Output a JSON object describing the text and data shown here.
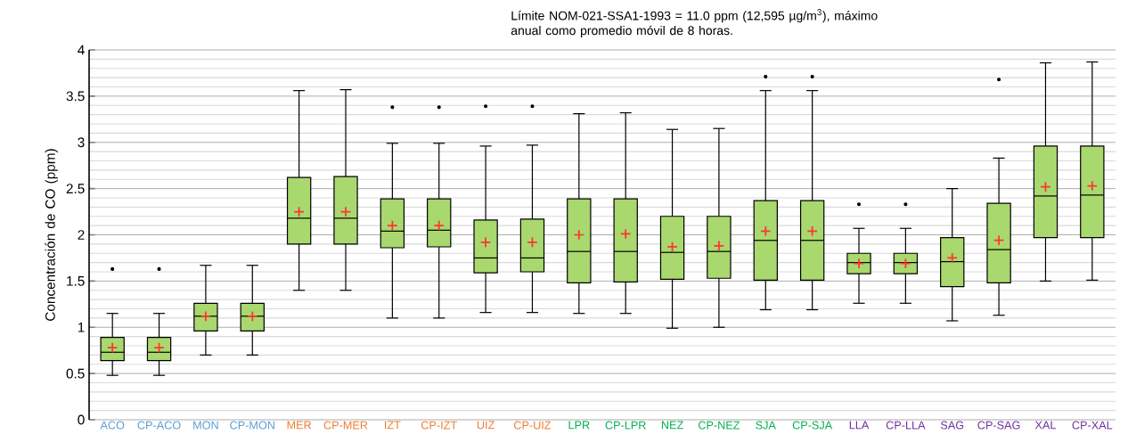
{
  "chart_data": {
    "type": "box",
    "ylabel": "Concentración de CO (ppm)",
    "annotations": [
      "Límite NOM-021-SSA1-1993 = 11.0 ppm (12,595 µg/m$^{3}$),  máximo anual como promedio móvil de 8 horas."
    ],
    "categories": [
      "ACO",
      "CP-ACO",
      "MON",
      "CP-MON",
      "MER",
      "CP-MER",
      "IZT",
      "CP-IZT",
      "UIZ",
      "CP-UIZ",
      "LPR",
      "CP-LPR",
      "NEZ",
      "CP-NEZ",
      "SJA",
      "CP-SJA",
      "LLA",
      "CP-LLA",
      "SAG",
      "CP-SAG",
      "XAL",
      "CP-XAL"
    ],
    "ylim": [
      0,
      4
    ],
    "yticks": [
      0,
      0.5,
      1,
      1.5,
      2,
      2.5,
      3,
      3.5,
      4
    ],
    "grid": "y",
    "series": [
      {
        "color": "#a9d86e",
        "boxes": [
          {
            "low": 0.48,
            "q1": 0.64,
            "median": 0.73,
            "q3": 0.89,
            "high": 1.15,
            "mean": 0.78,
            "outliers": [
              1.63
            ]
          },
          {
            "low": 0.48,
            "q1": 0.64,
            "median": 0.73,
            "q3": 0.89,
            "high": 1.15,
            "mean": 0.78,
            "outliers": [
              1.63
            ]
          },
          {
            "low": 0.7,
            "q1": 0.96,
            "median": 1.12,
            "q3": 1.26,
            "high": 1.67,
            "mean": 1.12
          },
          {
            "low": 0.7,
            "q1": 0.96,
            "median": 1.12,
            "q3": 1.26,
            "high": 1.67,
            "mean": 1.12
          },
          {
            "low": 1.4,
            "q1": 1.9,
            "median": 2.18,
            "q3": 2.62,
            "high": 3.56,
            "mean": 2.25
          },
          {
            "low": 1.4,
            "q1": 1.9,
            "median": 2.18,
            "q3": 2.63,
            "high": 3.57,
            "mean": 2.25
          },
          {
            "low": 1.1,
            "q1": 1.86,
            "median": 2.04,
            "q3": 2.39,
            "high": 2.99,
            "mean": 2.1,
            "outliers": [
              3.38
            ]
          },
          {
            "low": 1.1,
            "q1": 1.87,
            "median": 2.05,
            "q3": 2.39,
            "high": 2.99,
            "mean": 2.1,
            "outliers": [
              3.38
            ]
          },
          {
            "low": 1.16,
            "q1": 1.59,
            "median": 1.75,
            "q3": 2.16,
            "high": 2.96,
            "mean": 1.92,
            "outliers": [
              3.39
            ]
          },
          {
            "low": 1.16,
            "q1": 1.6,
            "median": 1.75,
            "q3": 2.17,
            "high": 2.97,
            "mean": 1.92,
            "outliers": [
              3.39
            ]
          },
          {
            "low": 1.15,
            "q1": 1.48,
            "median": 1.82,
            "q3": 2.39,
            "high": 3.31,
            "mean": 2.0
          },
          {
            "low": 1.15,
            "q1": 1.49,
            "median": 1.82,
            "q3": 2.39,
            "high": 3.32,
            "mean": 2.01
          },
          {
            "low": 0.99,
            "q1": 1.52,
            "median": 1.81,
            "q3": 2.2,
            "high": 3.14,
            "mean": 1.87
          },
          {
            "low": 1.0,
            "q1": 1.53,
            "median": 1.82,
            "q3": 2.2,
            "high": 3.15,
            "mean": 1.88
          },
          {
            "low": 1.19,
            "q1": 1.51,
            "median": 1.94,
            "q3": 2.37,
            "high": 3.56,
            "mean": 2.04,
            "outliers": [
              3.71
            ]
          },
          {
            "low": 1.19,
            "q1": 1.51,
            "median": 1.94,
            "q3": 2.37,
            "high": 3.56,
            "mean": 2.04,
            "outliers": [
              3.71
            ]
          },
          {
            "low": 1.26,
            "q1": 1.58,
            "median": 1.7,
            "q3": 1.8,
            "high": 2.07,
            "mean": 1.69,
            "outliers": [
              2.33
            ]
          },
          {
            "low": 1.26,
            "q1": 1.58,
            "median": 1.7,
            "q3": 1.8,
            "high": 2.07,
            "mean": 1.69,
            "outliers": [
              2.33
            ]
          },
          {
            "low": 1.07,
            "q1": 1.44,
            "median": 1.71,
            "q3": 1.97,
            "high": 2.5,
            "mean": 1.75
          },
          {
            "low": 1.13,
            "q1": 1.48,
            "median": 1.84,
            "q3": 2.34,
            "high": 2.83,
            "mean": 1.94,
            "outliers": [
              3.68
            ]
          },
          {
            "low": 1.5,
            "q1": 1.97,
            "median": 2.42,
            "q3": 2.96,
            "high": 3.86,
            "mean": 2.52
          },
          {
            "low": 1.51,
            "q1": 1.97,
            "median": 2.43,
            "q3": 2.96,
            "high": 3.87,
            "mean": 2.53
          }
        ]
      }
    ]
  }
}
